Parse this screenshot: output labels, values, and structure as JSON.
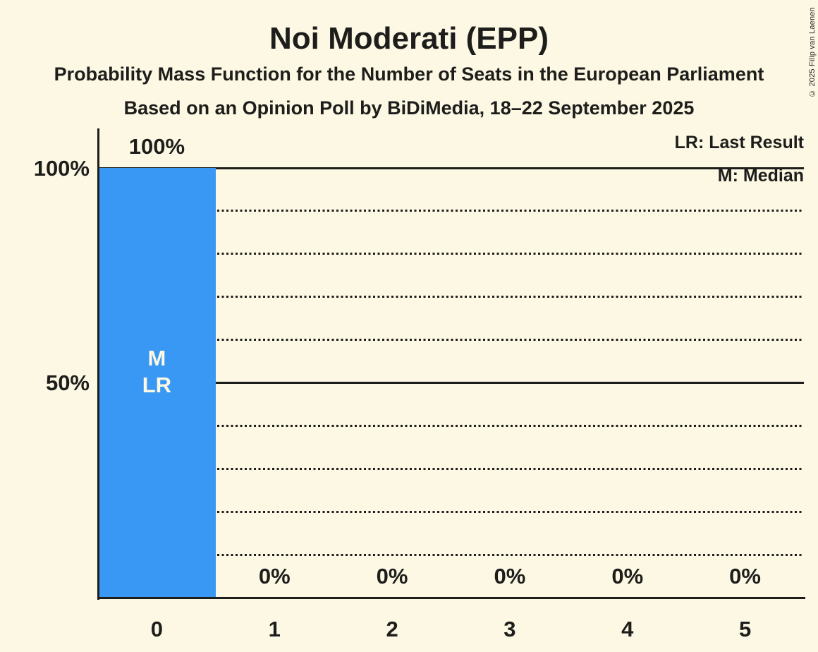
{
  "header": {
    "title": "Noi Moderati (EPP)",
    "subtitle1": "Probability Mass Function for the Number of Seats in the European Parliament",
    "subtitle2": "Based on an Opinion Poll by BiDiMedia, 18–22 September 2025"
  },
  "copyright": "© 2025 Filip van Laenen",
  "colors": {
    "background": "#FCF8E3",
    "bar": "#3898F4",
    "ink": "#1D1D1B",
    "bar_text": "#FCF8E3"
  },
  "chart_data": {
    "type": "bar",
    "title": "Noi Moderati (EPP)",
    "categories": [
      "0",
      "1",
      "2",
      "3",
      "4",
      "5"
    ],
    "values": [
      100,
      0,
      0,
      0,
      0,
      0
    ],
    "value_labels": [
      "100%",
      "0%",
      "0%",
      "0%",
      "0%",
      "0%"
    ],
    "annotations": [
      {
        "category_index": 0,
        "lines": [
          "M",
          "LR"
        ]
      }
    ],
    "legend": [
      "LR: Last Result",
      "M: Median"
    ],
    "legend_position": "top-right",
    "ylim": [
      0,
      100
    ],
    "yticks": [
      {
        "value": 100,
        "label": "100%"
      },
      {
        "value": 50,
        "label": "50%"
      }
    ],
    "gridlines": {
      "dotted": [
        10,
        20,
        30,
        40,
        60,
        70,
        80,
        90
      ],
      "solid": [
        50,
        100
      ]
    },
    "grid": true
  }
}
